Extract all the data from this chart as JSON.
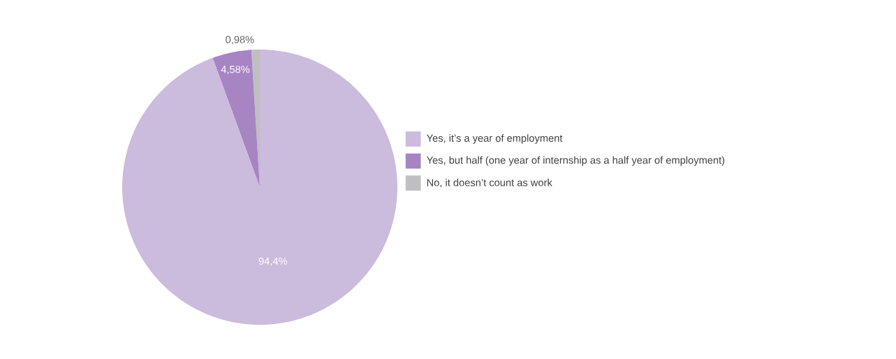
{
  "chart_data": {
    "type": "pie",
    "categories": [
      "Yes, it’s a year of employment",
      "Yes, but half (one year of internship as a half year of employment)",
      "No, it doesn’t count as work"
    ],
    "values": [
      94.4,
      4.58,
      0.98
    ],
    "value_labels": [
      "94,4%",
      "4,58%",
      "0,98%"
    ],
    "colors": [
      "#cbbbdc",
      "#a784c2",
      "#bfbfc1"
    ],
    "legend": "right"
  }
}
